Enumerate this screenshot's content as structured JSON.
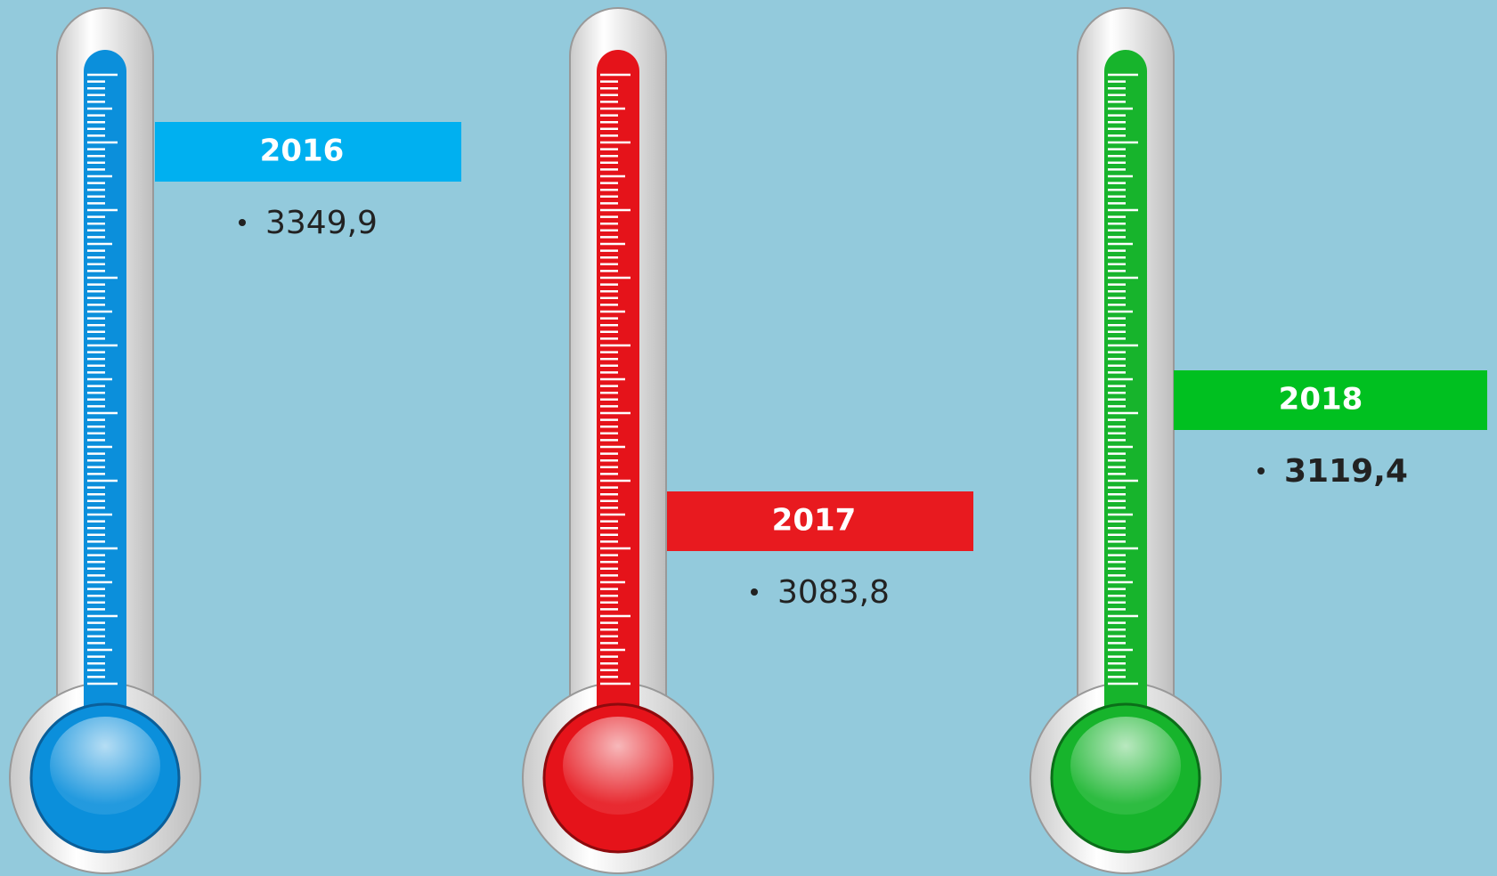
{
  "items": [
    {
      "year": "2016",
      "value": "3349,9"
    },
    {
      "year": "2017",
      "value": "3083,8"
    },
    {
      "year": "2018",
      "value": "3119,4"
    }
  ]
}
